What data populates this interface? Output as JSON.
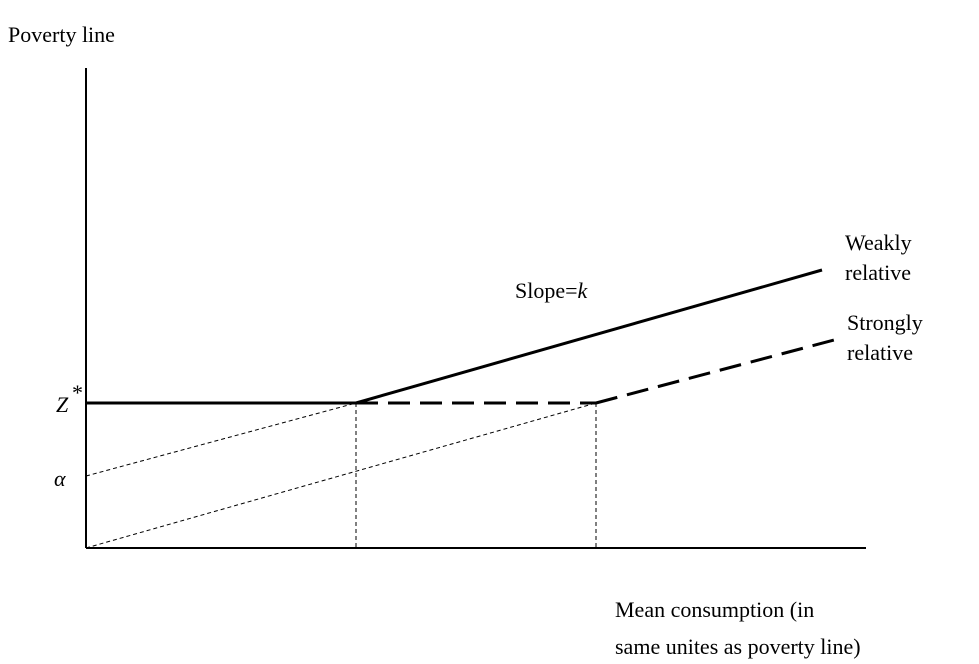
{
  "y_axis_label": "Poverty line",
  "x_axis_label": [
    "Mean consumption (in",
    "same unites as poverty line)"
  ],
  "z_label": {
    "base": "Z",
    "sup": "*"
  },
  "alpha_label": "α",
  "slope_label": {
    "text": "Slope=",
    "var": "k"
  },
  "weakly_label": [
    "Weakly",
    "relative"
  ],
  "strongly_label": [
    "Strongly",
    "relative"
  ]
}
